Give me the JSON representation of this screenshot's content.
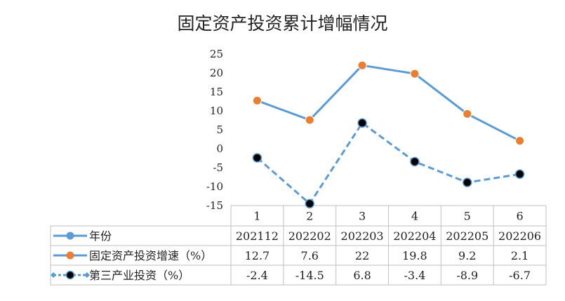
{
  "chart_data": {
    "type": "line",
    "title": "固定资产投资累计增幅情况",
    "categories": [
      "1",
      "2",
      "3",
      "4",
      "5",
      "6"
    ],
    "ylim": [
      -15,
      25
    ],
    "yticks": [
      "25",
      "20",
      "15",
      "10",
      "5",
      "0",
      "-5",
      "-10",
      "-15"
    ],
    "grid": false,
    "legend": "table-below",
    "table_rows": [
      {
        "name": "年份",
        "cells": [
          "202112",
          "202202",
          "202203",
          "202204",
          "202205",
          "202206"
        ],
        "color": "#5b9bd5",
        "marker_color": "#5b9bd5",
        "plotted": false
      },
      {
        "name": "固定资产投资增速（%）",
        "cells": [
          "12.7",
          "7.6",
          "22",
          "19.8",
          "9.2",
          "2.1"
        ],
        "values": [
          12.7,
          7.6,
          22,
          19.8,
          9.2,
          2.1
        ],
        "color": "#5b9bd5",
        "marker_color": "#ed7d31",
        "dashed": false,
        "plotted": true
      },
      {
        "name": "第三产业投资（%）",
        "cells": [
          "-2.4",
          "-14.5",
          "6.8",
          "-3.4",
          "-8.9",
          "-6.7"
        ],
        "values": [
          -2.4,
          -14.5,
          6.8,
          -3.4,
          -8.9,
          -6.7
        ],
        "color": "#5b9bd5",
        "marker_color": "#000000",
        "dashed": true,
        "plotted": true
      }
    ]
  }
}
